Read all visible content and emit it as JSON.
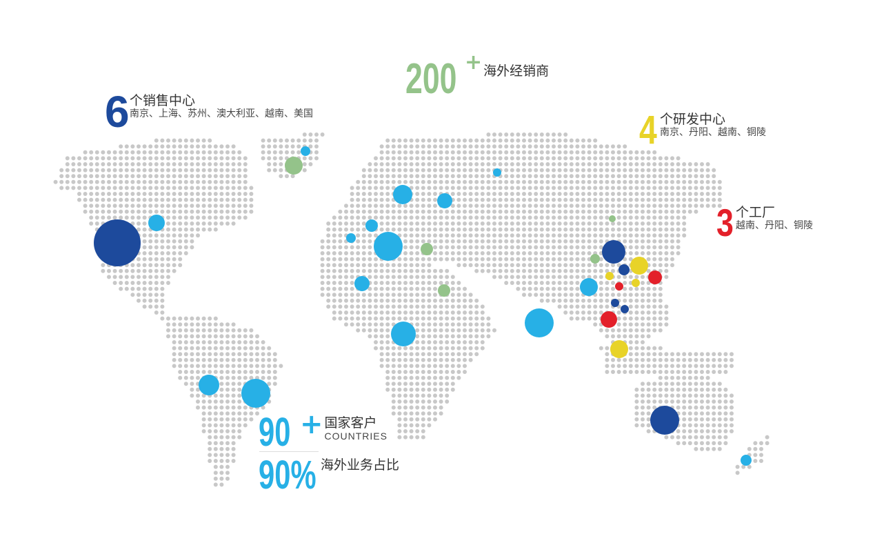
{
  "colors": {
    "sales": "#1d4a9c",
    "rnd": "#e8d328",
    "factory": "#e3202a",
    "customers": "#27b0e6",
    "distributors": "#94c38a",
    "map_dot": "#c8c8c8"
  },
  "distributors": {
    "number": "200",
    "plus": "+",
    "label": "海外经销商"
  },
  "sales": {
    "number": "6",
    "title": "个销售中心",
    "locations": "南京、上海、苏州、澳大利亚、越南、美国"
  },
  "rnd": {
    "number": "4",
    "title": "个研发中心",
    "locations": "南京、丹阳、越南、铜陵"
  },
  "factory": {
    "number": "3",
    "title": "个工厂",
    "locations": "越南、丹阳、铜陵"
  },
  "customers": {
    "number": "90",
    "plus": "+",
    "title": "国家客户",
    "subtitle": "COUNTRIES"
  },
  "overseas_share": {
    "number": "90%",
    "label": "海外业务占比"
  }
}
